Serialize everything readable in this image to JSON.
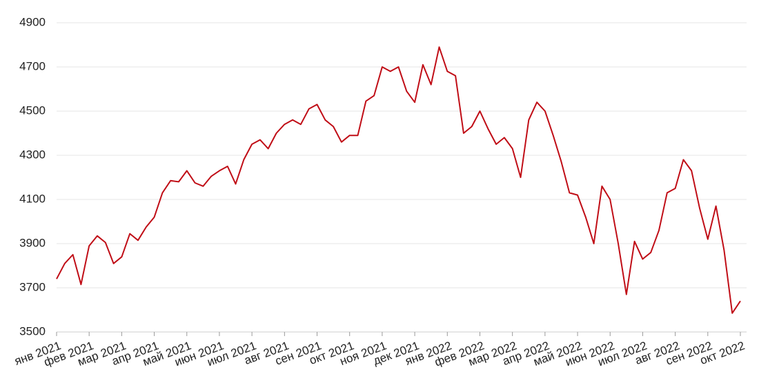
{
  "chart_data": {
    "type": "line",
    "categories": [
      "янв 2021",
      null,
      null,
      null,
      "фев 2021",
      null,
      null,
      null,
      "мар 2021",
      null,
      null,
      null,
      "апр 2021",
      null,
      null,
      null,
      "май 2021",
      null,
      null,
      null,
      "июн 2021",
      null,
      null,
      null,
      "июл 2021",
      null,
      null,
      null,
      "авг 2021",
      null,
      null,
      null,
      "сен 2021",
      null,
      null,
      null,
      "окт 2021",
      null,
      null,
      null,
      "ноя 2021",
      null,
      null,
      null,
      "дек 2021",
      null,
      null,
      null,
      "янв 2022",
      null,
      null,
      null,
      "фев 2022",
      null,
      null,
      null,
      "мар 2022",
      null,
      null,
      null,
      "апр 2022",
      null,
      null,
      null,
      "май 2022",
      null,
      null,
      null,
      "июн 2022",
      null,
      null,
      null,
      "июл 2022",
      null,
      null,
      null,
      "авг 2022",
      null,
      null,
      null,
      "сен 2022",
      null,
      null,
      null,
      "окт 2022"
    ],
    "values": [
      3740,
      3810,
      3850,
      3715,
      3890,
      3935,
      3905,
      3810,
      3840,
      3945,
      3915,
      3975,
      4020,
      4130,
      4185,
      4180,
      4230,
      4175,
      4160,
      4205,
      4230,
      4250,
      4170,
      4280,
      4350,
      4370,
      4330,
      4400,
      4440,
      4460,
      4440,
      4510,
      4530,
      4460,
      4430,
      4360,
      4390,
      4390,
      4545,
      4570,
      4700,
      4680,
      4700,
      4590,
      4540,
      4710,
      4620,
      4790,
      4680,
      4660,
      4400,
      4430,
      4500,
      4420,
      4350,
      4380,
      4330,
      4200,
      4460,
      4540,
      4500,
      4390,
      4270,
      4130,
      4120,
      4020,
      3900,
      4160,
      4100,
      3900,
      3670,
      3910,
      3830,
      3860,
      3960,
      4130,
      4150,
      4280,
      4230,
      4060,
      3920,
      4070,
      3870,
      3585,
      3640
    ],
    "color": "#c00d16",
    "ylim": [
      3500,
      4900
    ],
    "yticks": [
      3500,
      3700,
      3900,
      4100,
      4300,
      4500,
      4700,
      4900
    ],
    "grid": true
  }
}
